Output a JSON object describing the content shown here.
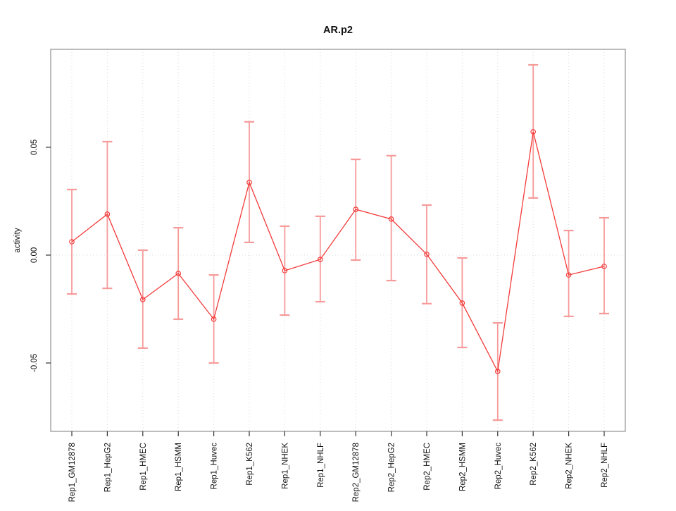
{
  "chart_data": {
    "type": "line",
    "title": "AR.p2",
    "xlabel": "",
    "ylabel": "activity",
    "legend": "none",
    "grid": "dotted vertical gridline at each category; dotted horizontal line at y=0",
    "categories": [
      "Rep1_GM12878",
      "Rep1_HepG2",
      "Rep1_HMEC",
      "Rep1_HSMM",
      "Rep1_Huvec",
      "Rep1_K562",
      "Rep1_NHEK",
      "Rep1_NHLF",
      "Rep2_GM12878",
      "Rep2_HepG2",
      "Rep2_HMEC",
      "Rep2_HSMM",
      "Rep2_Huvec",
      "Rep2_K562",
      "Rep2_NHEK",
      "Rep2_NHLF"
    ],
    "series": [
      {
        "name": "activity",
        "values": [
          0.0062,
          0.019,
          -0.0206,
          -0.0085,
          -0.0297,
          0.0337,
          -0.0072,
          -0.002,
          0.0212,
          0.0167,
          0.0004,
          -0.0222,
          -0.0539,
          0.0572,
          -0.0092,
          -0.0052
        ],
        "upper": [
          0.0304,
          0.0526,
          0.0023,
          0.0127,
          -0.0092,
          0.0618,
          0.0134,
          0.018,
          0.0444,
          0.0461,
          0.0232,
          -0.0013,
          -0.0314,
          0.0882,
          0.0114,
          0.0173
        ],
        "lower": [
          -0.018,
          -0.0154,
          -0.0431,
          -0.0297,
          -0.05,
          0.0059,
          -0.0278,
          -0.0216,
          -0.0023,
          -0.0118,
          -0.0225,
          -0.0428,
          -0.0765,
          0.0265,
          -0.0284,
          -0.0271
        ]
      }
    ],
    "yticks": [
      -0.05,
      0,
      0.05
    ],
    "ytick_labels": [
      "-0.05",
      "0.00",
      "0.05"
    ],
    "ylim": [
      -0.0817,
      0.0954
    ],
    "marker": "open-circle",
    "colors": {
      "line": "#f43b3b",
      "marker": "#f43b3b",
      "error_bar": "#f79a9a",
      "grid": "#dcdcdc",
      "box": "#999999",
      "tick": "#333333",
      "text": "#111111",
      "background": "#ffffff"
    }
  }
}
